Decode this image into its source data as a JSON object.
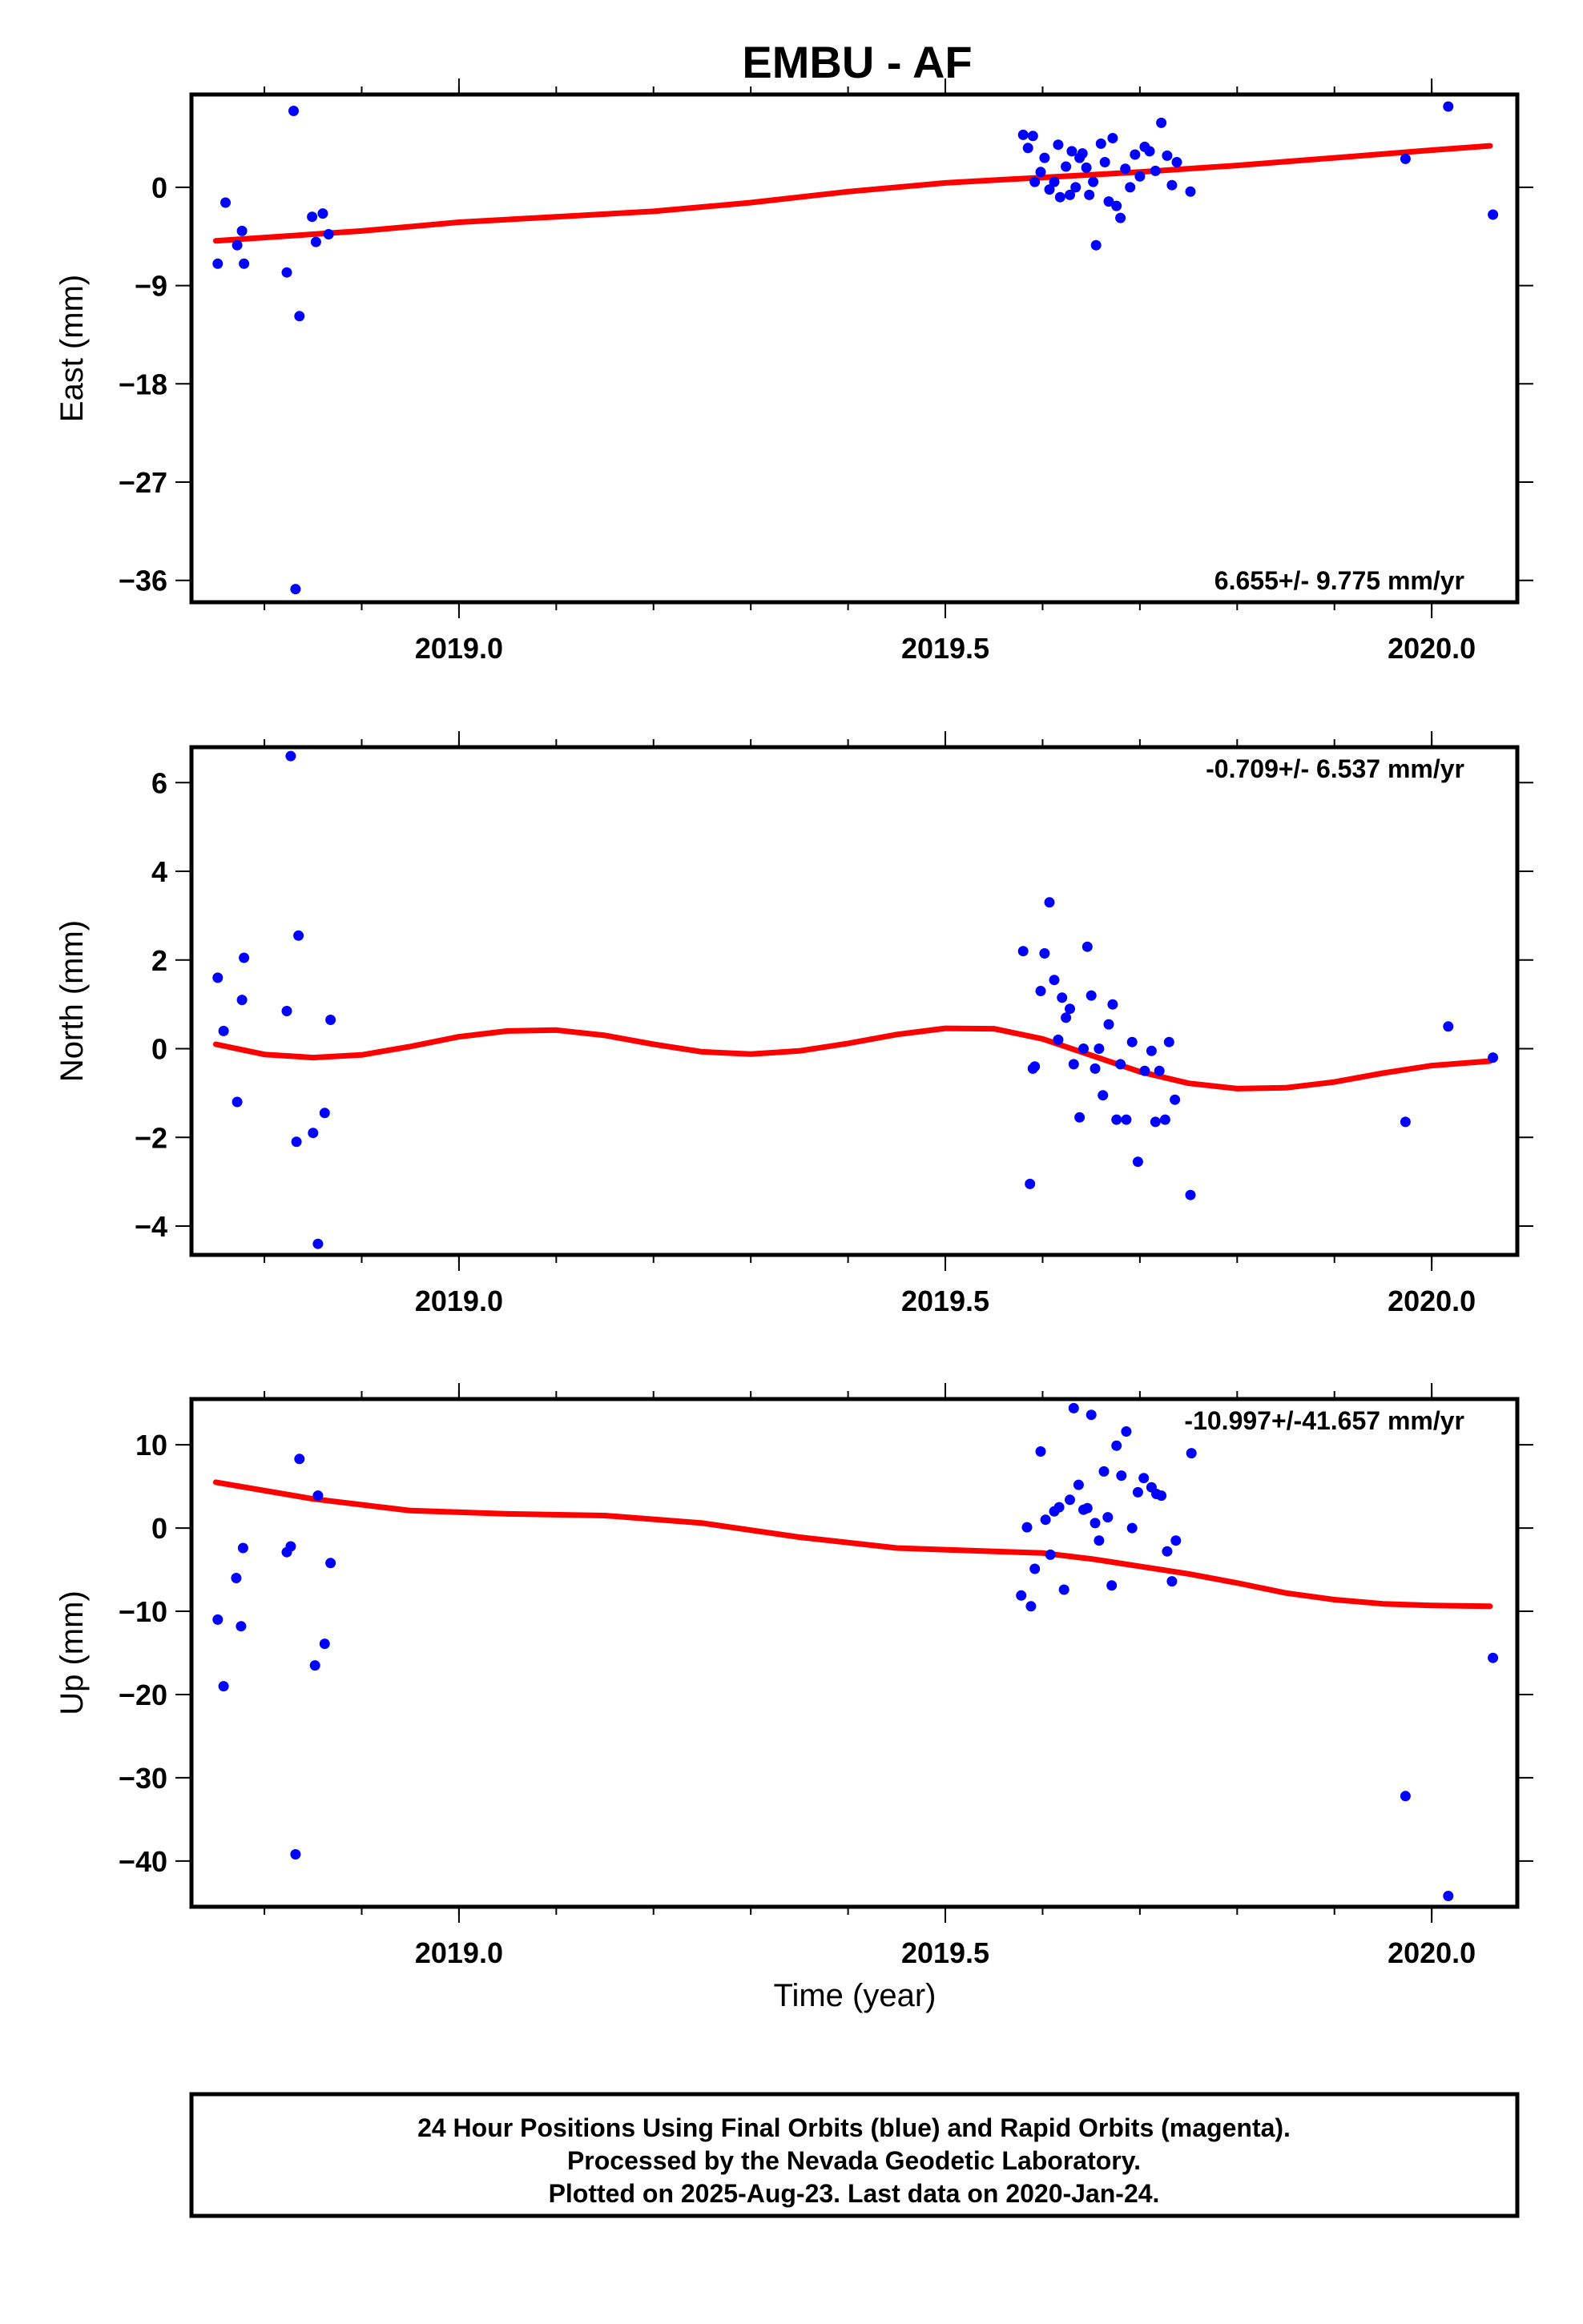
{
  "title": "EMBU - AF",
  "xlabel": "Time (year)",
  "footer": {
    "lines": [
      "24 Hour Positions Using Final Orbits (blue) and Rapid Orbits (magenta).",
      "Processed by the Nevada Geodetic Laboratory.",
      "Plotted on 2025-Aug-23. Last data on 2020-Jan-24."
    ]
  },
  "colors": {
    "points": "#0000ff",
    "fit": "#ff0000",
    "frame": "#000000"
  },
  "chart_data": [
    {
      "type": "scatter",
      "id": "east",
      "ylabel": "East (mm)",
      "rate_label": "6.655+/- 9.775 mm/yr",
      "rate_position": "bottom-right",
      "xlim": [
        2018.725,
        2020.088
      ],
      "ylim": [
        -38,
        8.5
      ],
      "xticks": [
        2019.0,
        2019.5,
        2020.0
      ],
      "xtick_labels": [
        "2019.0",
        "2019.5",
        "2020.0"
      ],
      "yticks": [
        0,
        -9,
        -18,
        -27,
        -36
      ],
      "ytick_labels": [
        "0",
        "−9",
        "−18",
        "−27",
        "−36"
      ],
      "series": [
        {
          "kind": "points",
          "x": [
            2018.752,
            2018.76,
            2018.772,
            2018.777,
            2018.779,
            2018.823,
            2018.83,
            2018.832,
            2018.836,
            2018.849,
            2018.853,
            2018.86,
            2018.866,
            2019.58,
            2019.585,
            2019.59,
            2019.592,
            2019.598,
            2019.602,
            2019.607,
            2019.612,
            2019.616,
            2019.618,
            2019.624,
            2019.628,
            2019.63,
            2019.634,
            2019.638,
            2019.641,
            2019.645,
            2019.648,
            2019.652,
            2019.655,
            2019.66,
            2019.664,
            2019.668,
            2019.672,
            2019.676,
            2019.68,
            2019.685,
            2019.69,
            2019.695,
            2019.7,
            2019.705,
            2019.71,
            2019.716,
            2019.722,
            2019.728,
            2019.733,
            2019.738,
            2019.752,
            2019.973,
            2020.017,
            2020.063
          ],
          "y": [
            -7.0,
            -1.4,
            -5.3,
            -4.0,
            -7.0,
            -7.8,
            7.0,
            -36.8,
            -11.8,
            -2.7,
            -5.0,
            -2.4,
            -4.3,
            4.8,
            3.6,
            4.7,
            0.5,
            1.4,
            2.7,
            -0.2,
            0.5,
            3.9,
            -0.9,
            1.9,
            -0.7,
            3.3,
            0.0,
            2.7,
            3.1,
            1.8,
            -0.7,
            0.5,
            -5.3,
            4.0,
            2.3,
            -1.3,
            4.5,
            -1.7,
            -2.8,
            1.7,
            0.0,
            3.0,
            1.0,
            3.7,
            3.3,
            1.5,
            5.9,
            2.9,
            0.2,
            2.3,
            -0.4,
            2.6,
            7.4,
            -2.5
          ]
        },
        {
          "kind": "fit",
          "x": [
            2018.75,
            2018.9,
            2019.0,
            2019.1,
            2019.2,
            2019.3,
            2019.4,
            2019.5,
            2019.6,
            2019.7,
            2019.8,
            2019.9,
            2020.0,
            2020.06
          ],
          "y": [
            -4.9,
            -4.0,
            -3.2,
            -2.7,
            -2.2,
            -1.4,
            -0.4,
            0.4,
            0.9,
            1.4,
            2.0,
            2.7,
            3.4,
            3.8
          ]
        }
      ]
    },
    {
      "type": "scatter",
      "id": "north",
      "ylabel": "North (mm)",
      "rate_label": "-0.709+/- 6.537 mm/yr",
      "rate_position": "top-right",
      "xlim": [
        2018.725,
        2020.088
      ],
      "ylim": [
        -4.65,
        6.8
      ],
      "xticks": [
        2019.0,
        2019.5,
        2020.0
      ],
      "xtick_labels": [
        "2019.0",
        "2019.5",
        "2020.0"
      ],
      "yticks": [
        6,
        4,
        2,
        0,
        -2,
        -4
      ],
      "ytick_labels": [
        "6",
        "4",
        "2",
        "0",
        "−2",
        "−4"
      ],
      "series": [
        {
          "kind": "points",
          "x": [
            2018.752,
            2018.758,
            2018.772,
            2018.777,
            2018.779,
            2018.823,
            2018.827,
            2018.833,
            2018.835,
            2018.85,
            2018.855,
            2018.862,
            2018.868,
            2019.58,
            2019.587,
            2019.59,
            2019.592,
            2019.598,
            2019.602,
            2019.607,
            2019.612,
            2019.616,
            2019.62,
            2019.624,
            2019.628,
            2019.632,
            2019.638,
            2019.642,
            2019.646,
            2019.65,
            2019.654,
            2019.658,
            2019.662,
            2019.668,
            2019.672,
            2019.676,
            2019.68,
            2019.686,
            2019.692,
            2019.698,
            2019.705,
            2019.712,
            2019.716,
            2019.72,
            2019.726,
            2019.73,
            2019.736,
            2019.752,
            2019.973,
            2020.017,
            2020.063
          ],
          "y": [
            1.6,
            0.4,
            -1.2,
            1.1,
            2.05,
            0.85,
            6.6,
            -2.1,
            2.55,
            -1.9,
            -4.4,
            -1.45,
            0.65,
            2.2,
            -3.05,
            -0.45,
            -0.4,
            1.3,
            2.15,
            3.3,
            1.55,
            0.2,
            1.15,
            0.7,
            0.9,
            -0.35,
            -1.55,
            0.0,
            2.3,
            1.2,
            -0.45,
            0.0,
            -1.05,
            0.55,
            1.0,
            -1.6,
            -0.35,
            -1.6,
            0.15,
            -2.55,
            -0.5,
            -0.05,
            -1.65,
            -0.5,
            -1.6,
            0.15,
            -1.15,
            -3.3,
            -1.65,
            0.5,
            -0.2
          ]
        },
        {
          "kind": "fit",
          "x": [
            2018.75,
            2018.8,
            2018.85,
            2018.9,
            2018.95,
            2019.0,
            2019.05,
            2019.1,
            2019.15,
            2019.2,
            2019.25,
            2019.3,
            2019.35,
            2019.4,
            2019.45,
            2019.5,
            2019.55,
            2019.6,
            2019.65,
            2019.7,
            2019.75,
            2019.8,
            2019.85,
            2019.9,
            2019.95,
            2020.0,
            2020.06
          ],
          "y": [
            0.1,
            -0.13,
            -0.2,
            -0.14,
            0.05,
            0.27,
            0.4,
            0.42,
            0.3,
            0.1,
            -0.07,
            -0.12,
            -0.05,
            0.12,
            0.32,
            0.46,
            0.45,
            0.22,
            -0.15,
            -0.52,
            -0.78,
            -0.9,
            -0.88,
            -0.75,
            -0.55,
            -0.38,
            -0.28
          ]
        }
      ]
    },
    {
      "type": "scatter",
      "id": "up",
      "ylabel": "Up (mm)",
      "rate_label": "-10.997+/-41.657 mm/yr",
      "rate_position": "top-right",
      "xlim": [
        2018.725,
        2020.088
      ],
      "ylim": [
        -45.5,
        15.5
      ],
      "xticks": [
        2019.0,
        2019.5,
        2020.0
      ],
      "xtick_labels": [
        "2019.0",
        "2019.5",
        "2020.0"
      ],
      "yticks": [
        10,
        0,
        -10,
        -20,
        -30,
        -40
      ],
      "ytick_labels": [
        "10",
        "0",
        "−10",
        "−20",
        "−30",
        "−40"
      ],
      "series": [
        {
          "kind": "points",
          "x": [
            2018.752,
            2018.758,
            2018.771,
            2018.776,
            2018.778,
            2018.823,
            2018.827,
            2018.832,
            2018.836,
            2018.852,
            2018.855,
            2018.862,
            2018.868,
            2019.578,
            2019.584,
            2019.588,
            2019.592,
            2019.598,
            2019.603,
            2019.608,
            2019.612,
            2019.617,
            2019.622,
            2019.628,
            2019.632,
            2019.637,
            2019.642,
            2019.646,
            2019.65,
            2019.654,
            2019.658,
            2019.663,
            2019.667,
            2019.671,
            2019.676,
            2019.681,
            2019.686,
            2019.692,
            2019.698,
            2019.704,
            2019.712,
            2019.717,
            2019.722,
            2019.728,
            2019.733,
            2019.737,
            2019.753,
            2019.973,
            2020.017,
            2020.063
          ],
          "y": [
            -11.0,
            -19.0,
            -6.0,
            -11.8,
            -2.4,
            -2.9,
            -2.2,
            -39.2,
            8.3,
            -16.5,
            3.9,
            -13.9,
            -4.2,
            -8.1,
            0.1,
            -9.4,
            -4.9,
            9.2,
            1.0,
            -3.2,
            2.0,
            2.5,
            -7.4,
            3.4,
            14.4,
            5.2,
            2.2,
            2.4,
            13.6,
            0.6,
            -1.5,
            6.8,
            1.3,
            -6.9,
            9.9,
            6.3,
            11.6,
            0.0,
            4.3,
            6.0,
            4.9,
            4.1,
            3.9,
            -2.8,
            -6.4,
            -1.5,
            9.0,
            -32.2,
            -44.2,
            -15.6
          ]
        },
        {
          "kind": "fit",
          "x": [
            2018.75,
            2018.85,
            2018.95,
            2019.05,
            2019.15,
            2019.25,
            2019.35,
            2019.45,
            2019.55,
            2019.6,
            2019.65,
            2019.7,
            2019.75,
            2019.8,
            2019.85,
            2019.9,
            2019.95,
            2020.0,
            2020.06
          ],
          "y": [
            5.5,
            3.5,
            2.1,
            1.7,
            1.5,
            0.6,
            -1.1,
            -2.4,
            -2.8,
            -3.0,
            -3.7,
            -4.6,
            -5.5,
            -6.6,
            -7.8,
            -8.6,
            -9.1,
            -9.3,
            -9.4
          ]
        }
      ]
    }
  ]
}
